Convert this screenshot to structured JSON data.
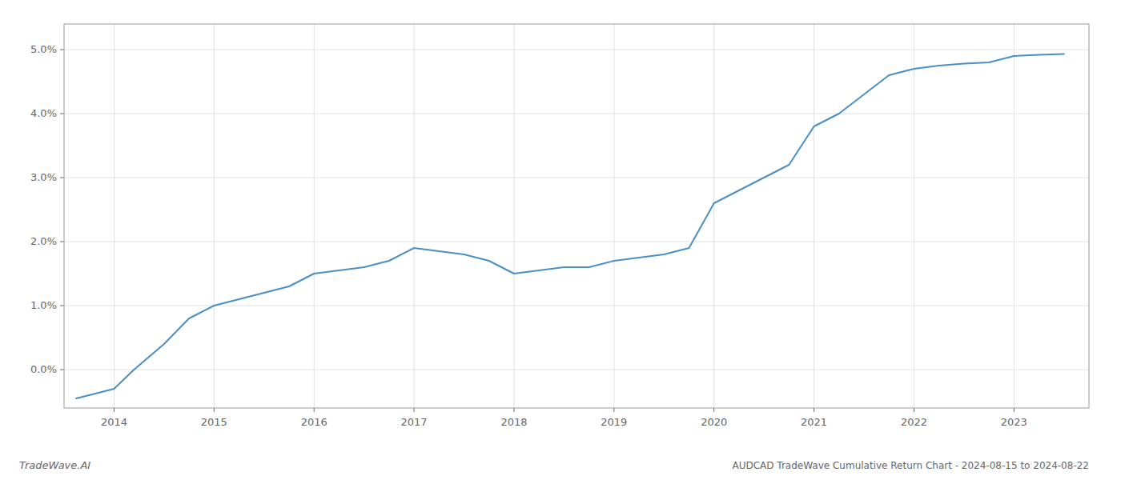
{
  "chart_data": {
    "type": "line",
    "title": "AUDCAD TradeWave Cumulative Return Chart - 2024-08-15 to 2024-08-22",
    "annotations": [
      "TradeWave.AI"
    ],
    "x": [
      2013.62,
      2013.75,
      2014.0,
      2014.2,
      2014.5,
      2014.75,
      2015.0,
      2015.25,
      2015.5,
      2015.75,
      2016.0,
      2016.25,
      2016.5,
      2016.75,
      2017.0,
      2017.25,
      2017.5,
      2017.75,
      2018.0,
      2018.25,
      2018.5,
      2018.75,
      2019.0,
      2019.25,
      2019.5,
      2019.75,
      2020.0,
      2020.25,
      2020.5,
      2020.75,
      2021.0,
      2021.25,
      2021.5,
      2021.75,
      2022.0,
      2022.25,
      2022.5,
      2022.75,
      2023.0,
      2023.25,
      2023.5
    ],
    "values": [
      -0.0045,
      -0.004,
      -0.003,
      0.0,
      0.004,
      0.008,
      0.01,
      0.011,
      0.012,
      0.013,
      0.015,
      0.0155,
      0.016,
      0.017,
      0.019,
      0.0185,
      0.018,
      0.017,
      0.015,
      0.0155,
      0.016,
      0.016,
      0.017,
      0.0175,
      0.018,
      0.019,
      0.026,
      0.028,
      0.03,
      0.032,
      0.038,
      0.04,
      0.043,
      0.046,
      0.047,
      0.0475,
      0.0478,
      0.048,
      0.049,
      0.0492,
      0.0493
    ],
    "color": "#4a8fc4",
    "xlim": [
      2013.5,
      2023.75
    ],
    "xticks": [
      2014,
      2015,
      2016,
      2017,
      2018,
      2019,
      2020,
      2021,
      2022,
      2023
    ],
    "ylim": [
      -0.006,
      0.054
    ],
    "yticks": [
      {
        "value": 0.0,
        "label": "0.0%"
      },
      {
        "value": 0.01,
        "label": "1.0%"
      },
      {
        "value": 0.02,
        "label": "2.0%"
      },
      {
        "value": 0.03,
        "label": "3.0%"
      },
      {
        "value": 0.04,
        "label": "4.0%"
      },
      {
        "value": 0.05,
        "label": "5.0%"
      }
    ],
    "grid": true
  }
}
